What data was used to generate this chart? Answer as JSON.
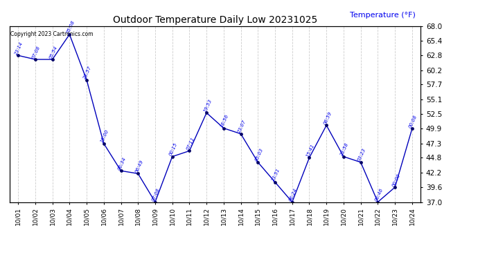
{
  "title": "Outdoor Temperature Daily Low 20231025",
  "ylabel": "Temperature (°F)",
  "copyright": "Copyright 2023 Cartronics.com",
  "x_labels": [
    "10/01",
    "10/02",
    "10/03",
    "10/04",
    "10/05",
    "10/06",
    "10/07",
    "10/08",
    "10/09",
    "10/10",
    "10/11",
    "10/12",
    "10/13",
    "10/14",
    "10/15",
    "10/16",
    "10/17",
    "10/18",
    "10/19",
    "10/20",
    "10/21",
    "10/22",
    "10/23",
    "10/24"
  ],
  "x_values": [
    0,
    1,
    2,
    3,
    4,
    5,
    6,
    7,
    8,
    9,
    10,
    11,
    12,
    13,
    14,
    15,
    16,
    17,
    18,
    19,
    20,
    21,
    22,
    23
  ],
  "y_values": [
    62.8,
    62.1,
    62.1,
    66.5,
    58.5,
    47.3,
    42.5,
    42.0,
    37.0,
    45.0,
    46.0,
    52.7,
    50.0,
    49.0,
    44.0,
    40.5,
    37.0,
    44.8,
    50.5,
    45.0,
    44.0,
    37.0,
    39.6,
    49.9
  ],
  "point_labels": [
    "23:14",
    "07:08",
    "05:54",
    "05:08",
    "23:57",
    "19:00",
    "06:34",
    "06:49",
    "07:08",
    "00:15",
    "07:11",
    "19:53",
    "16:56",
    "23:07",
    "05:03",
    "23:51",
    "06:24",
    "15:41",
    "06:59",
    "23:58",
    "03:23",
    "06:46",
    "00:00",
    "00:08"
  ],
  "line_color": "#0000bb",
  "marker_color": "#000066",
  "label_color": "#0000ee",
  "grid_color": "#cccccc",
  "bg_color": "#ffffff",
  "ylim_min": 37.0,
  "ylim_max": 68.0,
  "yticks": [
    37.0,
    39.6,
    42.2,
    44.8,
    47.3,
    49.9,
    52.5,
    55.1,
    57.7,
    60.2,
    62.8,
    65.4,
    68.0
  ]
}
